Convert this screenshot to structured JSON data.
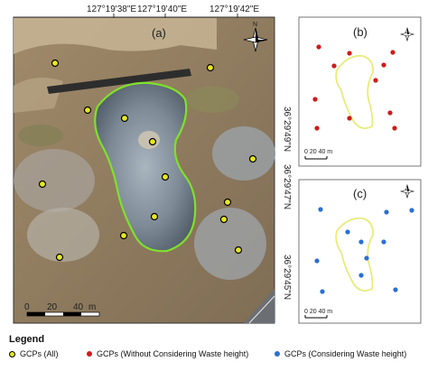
{
  "top_coords": [
    "127°19'38\"E",
    "127°19'40\"E",
    "127°19'42\"E"
  ],
  "left_coords": [
    "36°29'49\"N",
    "36°29'47\"N",
    "36°29'45\"N"
  ],
  "panels": {
    "a": "(a)",
    "b": "(b)",
    "c": "(c)"
  },
  "scale_a": {
    "zero": "0",
    "mid": "20",
    "end": "40",
    "unit": "m"
  },
  "scale_small": {
    "label": "0 20 40 m"
  },
  "north_label": "N",
  "legend": {
    "title": "Legend",
    "items": [
      {
        "label": "GCPs  (All)",
        "color": "#e8e81a"
      },
      {
        "label": "GCPs  (Without Considering Waste height)",
        "color": "#d11a1a"
      },
      {
        "label": "GCPs  (Considering Waste height)",
        "color": "#2a6fd6"
      }
    ]
  }
}
